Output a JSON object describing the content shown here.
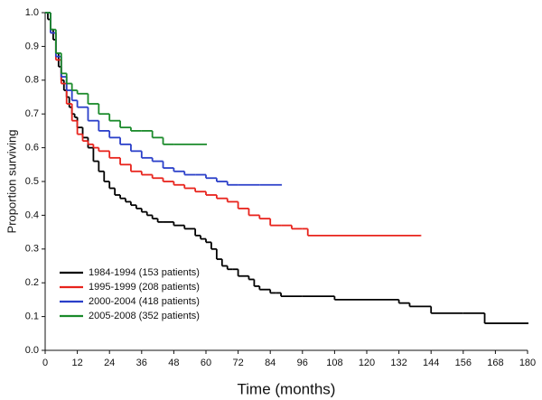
{
  "chart_data": {
    "type": "step",
    "xlabel": "Time (months)",
    "ylabel": "Proportion surviving",
    "xlim": [
      0,
      180
    ],
    "xticks": [
      0,
      12,
      24,
      36,
      48,
      60,
      72,
      84,
      96,
      108,
      120,
      132,
      144,
      156,
      168,
      180
    ],
    "ylim": [
      0,
      1
    ],
    "yticks": [
      {
        "value": 0,
        "label": "0.0"
      },
      0.1,
      0.2,
      0.3,
      0.4,
      0.5,
      0.6,
      0.7,
      0.8,
      0.9,
      {
        "value": 1,
        "label": "1.0"
      }
    ],
    "legend": "lower left",
    "series": [
      {
        "name": "1984-1994 (153 patients)",
        "color": "#000000",
        "x": [
          0,
          1,
          2,
          3,
          4,
          5,
          6,
          7,
          8,
          9,
          10,
          11,
          12,
          14,
          16,
          18,
          20,
          22,
          24,
          26,
          28,
          30,
          32,
          34,
          36,
          38,
          40,
          42,
          44,
          48,
          52,
          56,
          58,
          60,
          62,
          64,
          66,
          68,
          70,
          72,
          76,
          78,
          80,
          84,
          86,
          88,
          96,
          108,
          120,
          132,
          136,
          144,
          156,
          164,
          180
        ],
        "values": [
          1.0,
          0.98,
          0.95,
          0.92,
          0.88,
          0.84,
          0.8,
          0.77,
          0.75,
          0.72,
          0.7,
          0.69,
          0.66,
          0.63,
          0.6,
          0.56,
          0.53,
          0.5,
          0.48,
          0.46,
          0.45,
          0.44,
          0.43,
          0.42,
          0.41,
          0.4,
          0.39,
          0.38,
          0.38,
          0.37,
          0.36,
          0.34,
          0.33,
          0.32,
          0.3,
          0.27,
          0.25,
          0.24,
          0.24,
          0.22,
          0.21,
          0.19,
          0.18,
          0.17,
          0.17,
          0.16,
          0.16,
          0.15,
          0.15,
          0.14,
          0.13,
          0.11,
          0.11,
          0.08,
          0.08
        ]
      },
      {
        "name": "1995-1999 (208 patients)",
        "color": "#e8231c",
        "x": [
          0,
          2,
          4,
          6,
          8,
          10,
          12,
          14,
          16,
          18,
          20,
          24,
          28,
          32,
          36,
          40,
          44,
          48,
          52,
          56,
          60,
          64,
          68,
          72,
          76,
          80,
          84,
          88,
          92,
          96,
          98,
          140
        ],
        "values": [
          1.0,
          0.94,
          0.86,
          0.79,
          0.73,
          0.68,
          0.64,
          0.62,
          0.61,
          0.6,
          0.59,
          0.57,
          0.55,
          0.53,
          0.52,
          0.51,
          0.5,
          0.49,
          0.48,
          0.47,
          0.46,
          0.45,
          0.44,
          0.42,
          0.4,
          0.39,
          0.37,
          0.37,
          0.36,
          0.36,
          0.34,
          0.34
        ]
      },
      {
        "name": "2000-2004 (418 patients)",
        "color": "#2a3fc9",
        "x": [
          0,
          2,
          4,
          6,
          8,
          10,
          12,
          16,
          20,
          24,
          28,
          32,
          36,
          40,
          44,
          48,
          52,
          56,
          60,
          64,
          68,
          72,
          80,
          88
        ],
        "values": [
          1.0,
          0.94,
          0.87,
          0.81,
          0.77,
          0.74,
          0.72,
          0.68,
          0.65,
          0.63,
          0.61,
          0.59,
          0.57,
          0.56,
          0.54,
          0.53,
          0.52,
          0.52,
          0.51,
          0.5,
          0.49,
          0.49,
          0.49,
          0.49
        ]
      },
      {
        "name": "2005-2008 (352 patients)",
        "color": "#1a8a2a",
        "x": [
          0,
          2,
          4,
          6,
          8,
          10,
          12,
          16,
          20,
          24,
          28,
          32,
          36,
          40,
          44,
          48,
          60
        ],
        "values": [
          1.0,
          0.95,
          0.88,
          0.82,
          0.79,
          0.77,
          0.76,
          0.73,
          0.7,
          0.68,
          0.66,
          0.65,
          0.65,
          0.63,
          0.61,
          0.61,
          0.61
        ]
      }
    ]
  }
}
